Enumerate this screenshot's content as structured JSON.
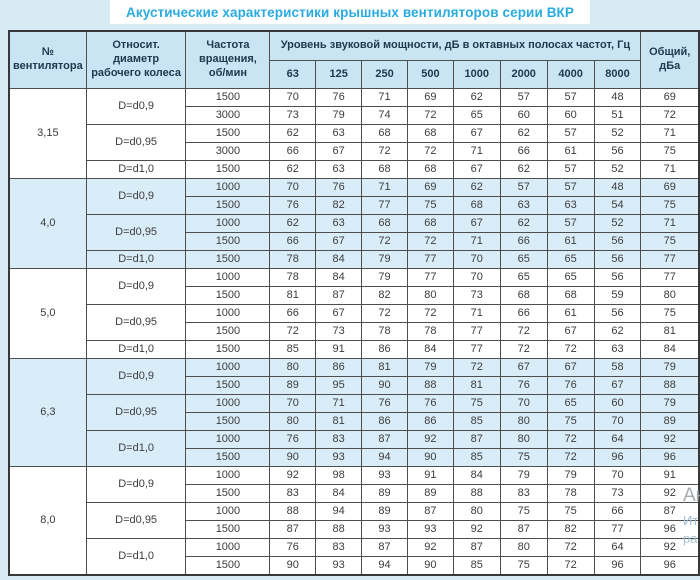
{
  "title": "Акустические характеристики крышных вентиляторов серии ВКР",
  "header": {
    "fan_no": "№ вентилятора",
    "diameter": "Относит. диаметр рабочего колеса",
    "rpm": "Частота вращения, об/мин",
    "spl_span": "Уровень звуковой мощности, дБ в октавных полосах частот, Гц",
    "octaves": [
      "63",
      "125",
      "250",
      "500",
      "1000",
      "2000",
      "4000",
      "8000"
    ],
    "total": "Общий, дБа"
  },
  "groups": [
    {
      "fan": "3,15",
      "shaded": false,
      "diameters": [
        {
          "label": "D=d0,9",
          "rows": [
            {
              "rpm": "1500",
              "levels": [
                70,
                76,
                71,
                69,
                62,
                57,
                57,
                48
              ],
              "total": 69
            },
            {
              "rpm": "3000",
              "levels": [
                73,
                79,
                74,
                72,
                65,
                60,
                60,
                51
              ],
              "total": 72
            }
          ]
        },
        {
          "label": "D=d0,95",
          "rows": [
            {
              "rpm": "1500",
              "levels": [
                62,
                63,
                68,
                68,
                67,
                62,
                57,
                52
              ],
              "total": 71
            },
            {
              "rpm": "3000",
              "levels": [
                66,
                67,
                72,
                72,
                71,
                66,
                61,
                56
              ],
              "total": 75
            }
          ]
        },
        {
          "label": "D=d1,0",
          "rows": [
            {
              "rpm": "1500",
              "levels": [
                62,
                63,
                68,
                68,
                67,
                62,
                57,
                52
              ],
              "total": 71
            }
          ]
        }
      ]
    },
    {
      "fan": "4,0",
      "shaded": true,
      "diameters": [
        {
          "label": "D=d0,9",
          "rows": [
            {
              "rpm": "1000",
              "levels": [
                70,
                76,
                71,
                69,
                62,
                57,
                57,
                48
              ],
              "total": 69
            },
            {
              "rpm": "1500",
              "levels": [
                76,
                82,
                77,
                75,
                68,
                63,
                63,
                54
              ],
              "total": 75
            }
          ]
        },
        {
          "label": "D=d0,95",
          "rows": [
            {
              "rpm": "1000",
              "levels": [
                62,
                63,
                68,
                68,
                67,
                62,
                57,
                52
              ],
              "total": 71
            },
            {
              "rpm": "1500",
              "levels": [
                66,
                67,
                72,
                72,
                71,
                66,
                61,
                56
              ],
              "total": 75
            }
          ]
        },
        {
          "label": "D=d1,0",
          "rows": [
            {
              "rpm": "1500",
              "levels": [
                78,
                84,
                79,
                77,
                70,
                65,
                65,
                56
              ],
              "total": 77
            }
          ]
        }
      ]
    },
    {
      "fan": "5,0",
      "shaded": false,
      "diameters": [
        {
          "label": "D=d0,9",
          "rows": [
            {
              "rpm": "1000",
              "levels": [
                78,
                84,
                79,
                77,
                70,
                65,
                65,
                56
              ],
              "total": 77
            },
            {
              "rpm": "1500",
              "levels": [
                81,
                87,
                82,
                80,
                73,
                68,
                68,
                59
              ],
              "total": 80
            }
          ]
        },
        {
          "label": "D=d0,95",
          "rows": [
            {
              "rpm": "1000",
              "levels": [
                66,
                67,
                72,
                72,
                71,
                66,
                61,
                56
              ],
              "total": 75
            },
            {
              "rpm": "1500",
              "levels": [
                72,
                73,
                78,
                78,
                77,
                72,
                67,
                62
              ],
              "total": 81
            }
          ]
        },
        {
          "label": "D=d1,0",
          "rows": [
            {
              "rpm": "1500",
              "levels": [
                85,
                91,
                86,
                84,
                77,
                72,
                72,
                63
              ],
              "total": 84
            }
          ]
        }
      ]
    },
    {
      "fan": "6,3",
      "shaded": true,
      "diameters": [
        {
          "label": "D=d0,9",
          "rows": [
            {
              "rpm": "1000",
              "levels": [
                80,
                86,
                81,
                79,
                72,
                67,
                67,
                58
              ],
              "total": 79
            },
            {
              "rpm": "1500",
              "levels": [
                89,
                95,
                90,
                88,
                81,
                76,
                76,
                67
              ],
              "total": 88
            }
          ]
        },
        {
          "label": "D=d0,95",
          "rows": [
            {
              "rpm": "1000",
              "levels": [
                70,
                71,
                76,
                76,
                75,
                70,
                65,
                60
              ],
              "total": 79
            },
            {
              "rpm": "1500",
              "levels": [
                80,
                81,
                86,
                86,
                85,
                80,
                75,
                70
              ],
              "total": 89
            }
          ]
        },
        {
          "label": "D=d1,0",
          "rows": [
            {
              "rpm": "1000",
              "levels": [
                76,
                83,
                87,
                92,
                87,
                80,
                72,
                64
              ],
              "total": 92
            },
            {
              "rpm": "1500",
              "levels": [
                90,
                93,
                94,
                90,
                85,
                75,
                72,
                96
              ],
              "total": 96
            }
          ]
        }
      ]
    },
    {
      "fan": "8,0",
      "shaded": false,
      "diameters": [
        {
          "label": "D=d0,9",
          "rows": [
            {
              "rpm": "1000",
              "levels": [
                92,
                98,
                93,
                91,
                84,
                79,
                79,
                70
              ],
              "total": 91
            },
            {
              "rpm": "1500",
              "levels": [
                83,
                84,
                89,
                89,
                88,
                83,
                78,
                73
              ],
              "total": 92
            }
          ]
        },
        {
          "label": "D=d0,95",
          "rows": [
            {
              "rpm": "1000",
              "levels": [
                88,
                94,
                89,
                87,
                80,
                75,
                75,
                66
              ],
              "total": 87
            },
            {
              "rpm": "1500",
              "levels": [
                87,
                88,
                93,
                93,
                92,
                87,
                82,
                77
              ],
              "total": 96
            }
          ]
        },
        {
          "label": "D=d1,0",
          "rows": [
            {
              "rpm": "1000",
              "levels": [
                76,
                83,
                87,
                92,
                87,
                80,
                72,
                64
              ],
              "total": 92
            },
            {
              "rpm": "1500",
              "levels": [
                90,
                93,
                94,
                90,
                85,
                75,
                72,
                96
              ],
              "total": 96
            }
          ]
        }
      ]
    }
  ],
  "watermark": {
    "line1": "Ан",
    "line2": "Ит",
    "line3": "ра"
  },
  "colors": {
    "title": "#29abe2",
    "page_background": "#d8eaf4",
    "header_background": "#c9e5f4",
    "shaded_row_background": "#d9edf8",
    "border": "#4e4e4e"
  }
}
